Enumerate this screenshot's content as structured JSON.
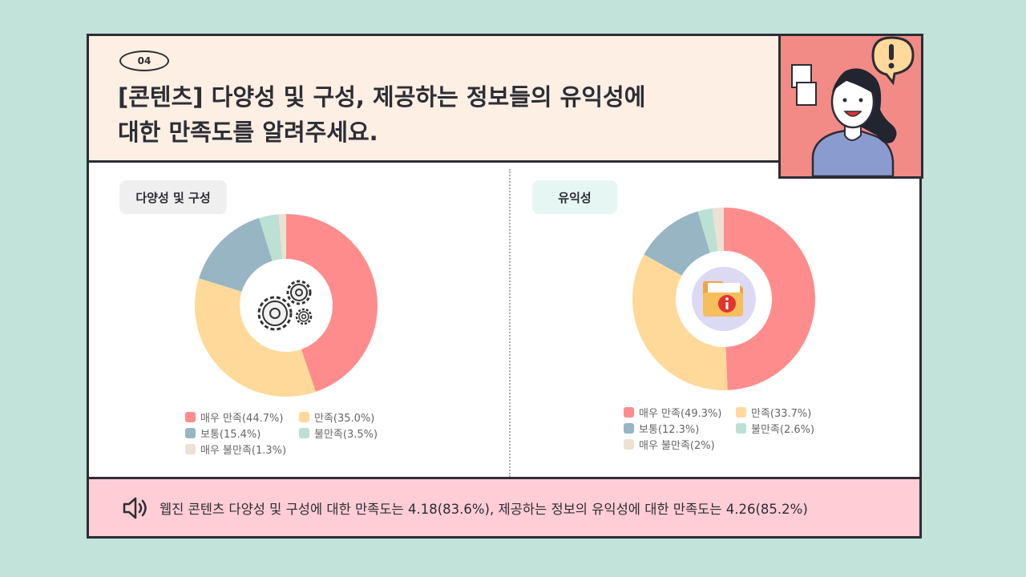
{
  "header": {
    "badge": "04",
    "title_line1": "[콘텐츠] 다양성 및 구성, 제공하는 정보들의 유익성에",
    "title_line2": "대한 만족도를 알려주세요."
  },
  "left_section": {
    "tag": "다양성 및 구성",
    "center_icon": "gears-icon"
  },
  "right_section": {
    "tag": "유익성",
    "center_icon": "info-folder-icon"
  },
  "colors": {
    "very_satisfied": "#ff8c8c",
    "satisfied": "#ffd99a",
    "neutral": "#97b5c2",
    "dissatisfied": "#bde0d5",
    "very_dissatisfied": "#ebe2d2"
  },
  "chart_data": [
    {
      "type": "pie",
      "title": "다양성 및 구성",
      "categories": [
        "매우 만족",
        "만족",
        "보통",
        "불만족",
        "매우 불만족"
      ],
      "values": [
        44.7,
        35.0,
        15.4,
        3.5,
        1.3
      ],
      "legend_labels": [
        "매우 만족(44.7%)",
        "만족(35.0%)",
        "보통(15.4%)",
        "불만족(3.5%)",
        "매우 불만족(1.3%)"
      ],
      "legend": "bottom"
    },
    {
      "type": "pie",
      "title": "유익성",
      "categories": [
        "매우 만족",
        "만족",
        "보통",
        "불만족",
        "매우 불만족"
      ],
      "values": [
        49.3,
        33.7,
        12.3,
        2.6,
        2.0
      ],
      "legend_labels": [
        "매우 만족(49.3%)",
        "만족(33.7%)",
        "보통(12.3%)",
        "불만족(2.6%)",
        "매우 불만족(2%)"
      ],
      "legend": "bottom"
    }
  ],
  "footer": {
    "icon": "speaker-icon",
    "text": "웹진 콘텐츠 다양성 및 구성에 대한 만족도는 4.18(83.6%), 제공하는 정보의 유익성에 대한 만족도는 4.26(85.2%)"
  }
}
